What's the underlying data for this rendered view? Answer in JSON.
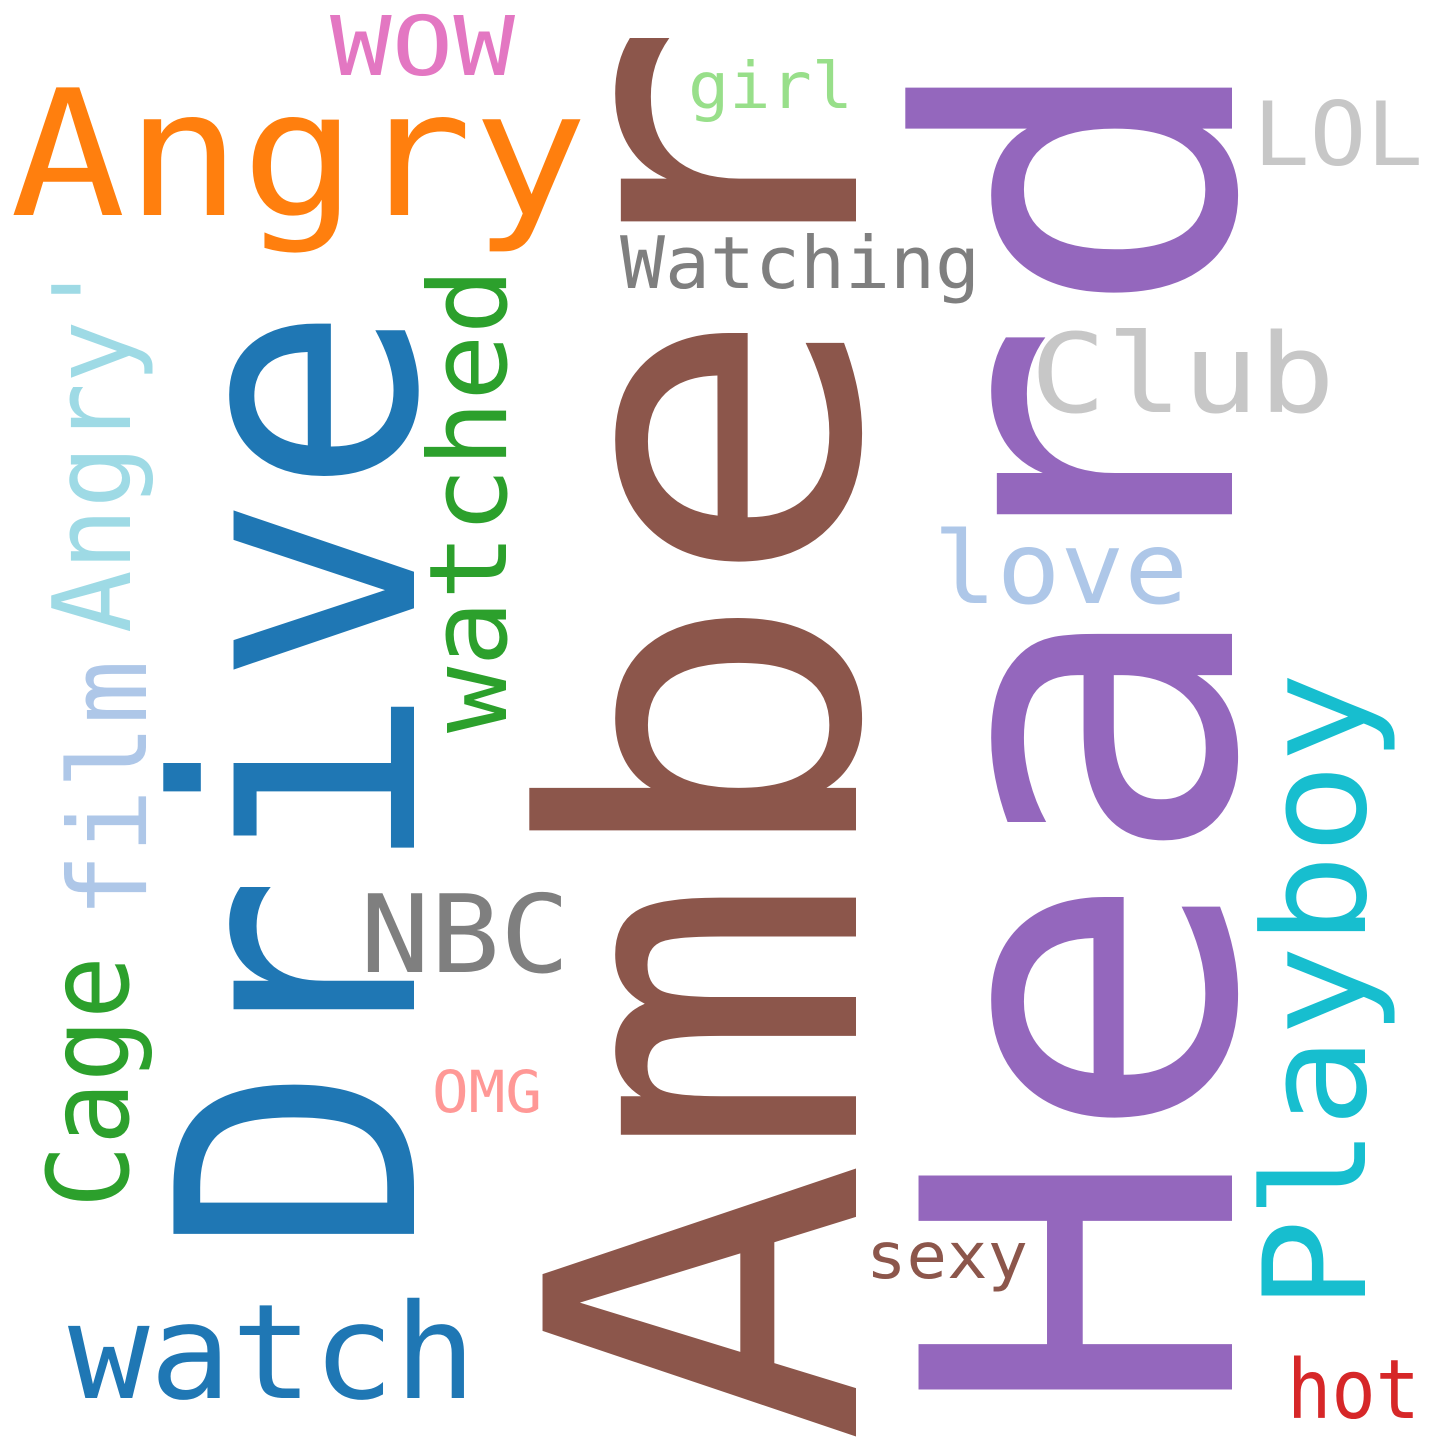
{
  "words": {
    "amber": {
      "text": "Amber",
      "color": "#8c564b",
      "orientation": "vertical"
    },
    "heard": {
      "text": "Heard",
      "color": "#9467bd",
      "orientation": "vertical"
    },
    "drive": {
      "text": "Drive",
      "color": "#1f77b4",
      "orientation": "vertical"
    },
    "angry": {
      "text": "Angry",
      "color": "#ff7f0e",
      "orientation": "horizontal"
    },
    "angry_q": {
      "text": "Angry'",
      "color": "#9edae5",
      "orientation": "vertical"
    },
    "watched": {
      "text": "watched",
      "color": "#2ca02c",
      "orientation": "vertical"
    },
    "watching": {
      "text": "Watching",
      "color": "#7f7f7f",
      "orientation": "horizontal"
    },
    "club": {
      "text": "Club",
      "color": "#c7c7c7",
      "orientation": "horizontal"
    },
    "love": {
      "text": "love",
      "color": "#aec7e8",
      "orientation": "horizontal"
    },
    "playboy": {
      "text": "Playboy",
      "color": "#17becf",
      "orientation": "vertical"
    },
    "film": {
      "text": "film",
      "color": "#aec7e8",
      "orientation": "vertical"
    },
    "cage": {
      "text": "Cage",
      "color": "#2ca02c",
      "orientation": "vertical"
    },
    "nbc": {
      "text": "NBC",
      "color": "#7f7f7f",
      "orientation": "horizontal"
    },
    "wow": {
      "text": "WOW",
      "color": "#e377c2",
      "orientation": "horizontal"
    },
    "girl": {
      "text": "girl",
      "color": "#98df8a",
      "orientation": "horizontal"
    },
    "lol": {
      "text": "LOL",
      "color": "#c7c7c7",
      "orientation": "horizontal"
    },
    "omg": {
      "text": "OMG",
      "color": "#ff9896",
      "orientation": "horizontal"
    },
    "sexy": {
      "text": "sexy",
      "color": "#8c564b",
      "orientation": "horizontal"
    },
    "watch": {
      "text": "watch",
      "color": "#1f77b4",
      "orientation": "horizontal"
    },
    "hot": {
      "text": "hot",
      "color": "#d62728",
      "orientation": "horizontal"
    }
  }
}
